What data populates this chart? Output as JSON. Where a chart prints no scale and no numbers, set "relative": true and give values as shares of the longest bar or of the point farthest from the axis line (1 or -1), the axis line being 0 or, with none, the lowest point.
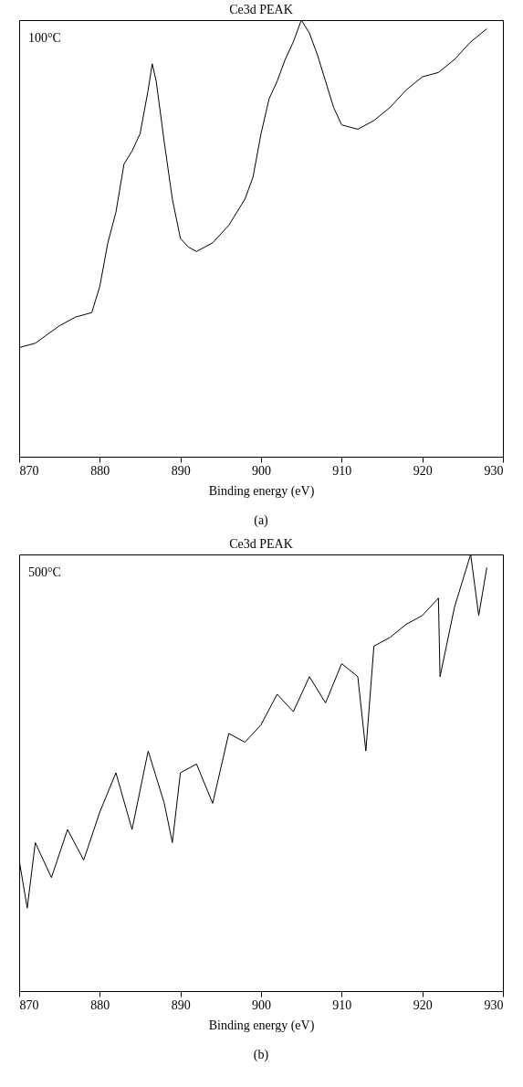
{
  "chart_data": [
    {
      "type": "line",
      "title": "Ce3d PEAK",
      "xlabel": "Binding energy (eV)",
      "relative": true,
      "xlim": [
        870,
        930
      ],
      "xticks": [
        870,
        880,
        890,
        900,
        910,
        920,
        930
      ],
      "grid": false,
      "annotations": [
        "100°C",
        "(a)"
      ],
      "series": [
        {
          "color": "#000000",
          "x": [
            870,
            872,
            875,
            877,
            879,
            880,
            881,
            882,
            883,
            884,
            885,
            886,
            886.5,
            887,
            888,
            889,
            890,
            891,
            892,
            894,
            896,
            898,
            899,
            900,
            901,
            902,
            903,
            904,
            905,
            906,
            907,
            908,
            909,
            910,
            912,
            914,
            916,
            918,
            920,
            922,
            924,
            926,
            928
          ],
          "values": [
            0.25,
            0.26,
            0.3,
            0.32,
            0.33,
            0.39,
            0.49,
            0.56,
            0.67,
            0.7,
            0.74,
            0.84,
            0.9,
            0.86,
            0.72,
            0.59,
            0.5,
            0.48,
            0.47,
            0.49,
            0.53,
            0.59,
            0.64,
            0.74,
            0.82,
            0.86,
            0.91,
            0.95,
            1.0,
            0.97,
            0.92,
            0.86,
            0.8,
            0.76,
            0.75,
            0.77,
            0.8,
            0.84,
            0.87,
            0.88,
            0.91,
            0.95,
            0.98
          ]
        }
      ]
    },
    {
      "type": "line",
      "title": "Ce3d PEAK",
      "xlabel": "Binding energy (eV)",
      "relative": true,
      "xlim": [
        870,
        930
      ],
      "xticks": [
        870,
        880,
        890,
        900,
        910,
        920,
        930
      ],
      "grid": false,
      "annotations": [
        "500°C",
        "(b)"
      ],
      "series": [
        {
          "color": "#000000",
          "x": [
            870,
            871,
            872,
            874,
            876,
            878,
            880,
            882,
            884,
            886,
            888,
            889,
            890,
            892,
            894,
            896,
            898,
            900,
            902,
            904,
            906,
            908,
            910,
            912,
            913,
            914,
            916,
            918,
            920,
            922,
            922.2,
            924,
            926,
            927,
            928
          ],
          "values": [
            0.3,
            0.19,
            0.34,
            0.26,
            0.37,
            0.3,
            0.41,
            0.5,
            0.37,
            0.55,
            0.43,
            0.34,
            0.5,
            0.52,
            0.43,
            0.59,
            0.57,
            0.61,
            0.68,
            0.64,
            0.72,
            0.66,
            0.75,
            0.72,
            0.55,
            0.79,
            0.81,
            0.84,
            0.86,
            0.9,
            0.72,
            0.88,
            1.0,
            0.86,
            0.97
          ]
        }
      ]
    }
  ]
}
